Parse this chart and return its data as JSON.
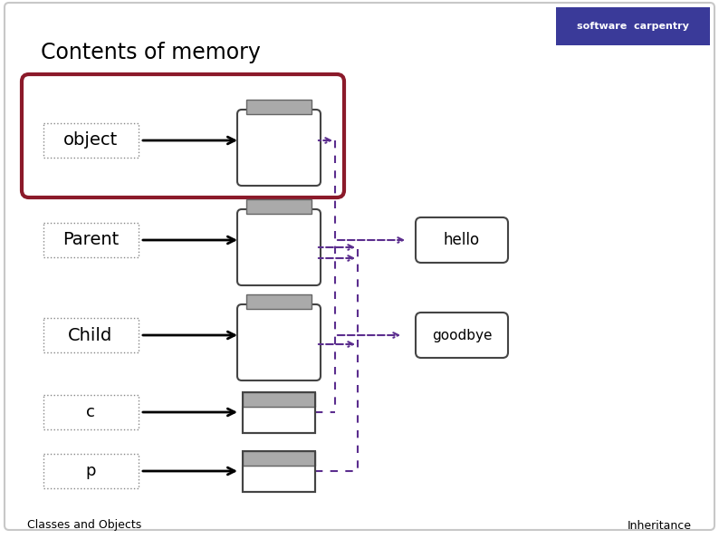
{
  "title": "Contents of memory",
  "slide_bg": "#ffffff",
  "border_color": "#c8c8c8",
  "footer_left": "Classes and Objects",
  "footer_right": "Inheritance",
  "labels": [
    "object",
    "Parent",
    "Child",
    "c",
    "p"
  ],
  "red_box_color": "#8b1a2a",
  "dashed_color": "#5b2d8e",
  "arrow_color": "#000000",
  "jar_lid_color": "#aaaaaa",
  "jar_body_color": "#ffffff",
  "jar_edge_color": "#555555"
}
